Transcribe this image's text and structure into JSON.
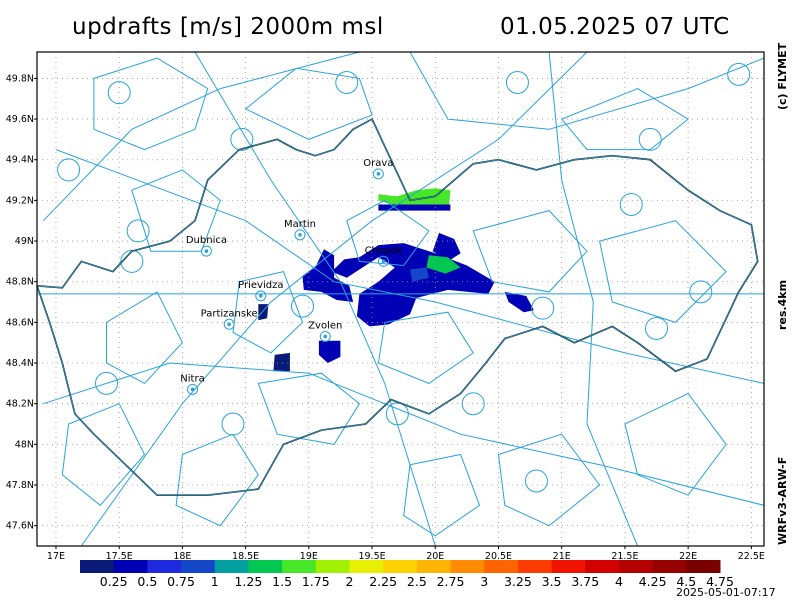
{
  "header": {
    "title": "updrafts [m/s] 2000m msl",
    "datetime": "01.05.2025 07 UTC"
  },
  "side_labels": {
    "copyright": "(c) FLYMET",
    "resolution": "res.4km",
    "model": "WRFv3-ARW-F"
  },
  "footer": {
    "timestamp": "2025-05-01-07:17"
  },
  "map_extent": {
    "lon_min": 16.85,
    "lon_max": 22.6,
    "lat_min": 47.5,
    "lat_max": 49.93
  },
  "axes": {
    "lat_ticks": [
      {
        "value": 49.8,
        "label": "49.8N"
      },
      {
        "value": 49.6,
        "label": "49.6N"
      },
      {
        "value": 49.4,
        "label": "49.4N"
      },
      {
        "value": 49.2,
        "label": "49.2N"
      },
      {
        "value": 49.0,
        "label": "49N"
      },
      {
        "value": 48.8,
        "label": "48.8N"
      },
      {
        "value": 48.6,
        "label": "48.6N"
      },
      {
        "value": 48.4,
        "label": "48.4N"
      },
      {
        "value": 48.2,
        "label": "48.2N"
      },
      {
        "value": 48.0,
        "label": "48N"
      },
      {
        "value": 47.8,
        "label": "47.8N"
      },
      {
        "value": 47.6,
        "label": "47.6N"
      }
    ],
    "lon_ticks": [
      {
        "value": 17.0,
        "label": "17E"
      },
      {
        "value": 17.5,
        "label": "17.5E"
      },
      {
        "value": 18.0,
        "label": "18E"
      },
      {
        "value": 18.5,
        "label": "18.5E"
      },
      {
        "value": 19.0,
        "label": "19E"
      },
      {
        "value": 19.5,
        "label": "19.5E"
      },
      {
        "value": 20.0,
        "label": "20E"
      },
      {
        "value": 20.5,
        "label": "20.5E"
      },
      {
        "value": 21.0,
        "label": "21E"
      },
      {
        "value": 21.5,
        "label": "21.5E"
      },
      {
        "value": 22.0,
        "label": "22E"
      },
      {
        "value": 22.5,
        "label": "22.5E"
      }
    ]
  },
  "cities": [
    {
      "name": "Orava",
      "lon": 19.55,
      "lat": 49.37
    },
    {
      "name": "Martin",
      "lon": 18.93,
      "lat": 49.07
    },
    {
      "name": "Dubnica",
      "lon": 18.19,
      "lat": 48.99
    },
    {
      "name": "Chopok",
      "lon": 19.59,
      "lat": 48.94
    },
    {
      "name": "Prievidza",
      "lon": 18.62,
      "lat": 48.77
    },
    {
      "name": "Partizanske",
      "lon": 18.37,
      "lat": 48.63
    },
    {
      "name": "Zvolen",
      "lon": 19.13,
      "lat": 48.57
    },
    {
      "name": "Nitra",
      "lon": 18.08,
      "lat": 48.31
    }
  ],
  "legend": {
    "unit": "m/s",
    "labels": [
      "0.25",
      "0.5",
      "0.75",
      "1",
      "1.25",
      "1.5",
      "1.75",
      "2",
      "2.25",
      "2.5",
      "2.75",
      "3",
      "3.25",
      "3.5",
      "3.75",
      "4",
      "4.25",
      "4.5",
      "4.75"
    ],
    "colors": [
      "#0a1a78",
      "#0000b4",
      "#1e28dc",
      "#1446c8",
      "#00a0a0",
      "#00c850",
      "#46e628",
      "#a0f000",
      "#e6f000",
      "#ffd200",
      "#ffb400",
      "#ff8c00",
      "#ff6400",
      "#ff3c00",
      "#f01400",
      "#d20000",
      "#b40000",
      "#960000",
      "#780000"
    ]
  },
  "updraft_regions": [
    {
      "value": 0.5,
      "points": [
        [
          18.95,
          48.83
        ],
        [
          19.05,
          48.87
        ],
        [
          19.12,
          48.96
        ],
        [
          19.2,
          48.93
        ],
        [
          19.2,
          48.82
        ],
        [
          19.32,
          48.78
        ],
        [
          19.35,
          48.7
        ],
        [
          19.22,
          48.71
        ],
        [
          19.1,
          48.75
        ],
        [
          18.96,
          48.76
        ]
      ]
    },
    {
      "value": 0.5,
      "points": [
        [
          19.18,
          48.85
        ],
        [
          19.28,
          48.91
        ],
        [
          19.4,
          48.92
        ],
        [
          19.55,
          48.98
        ],
        [
          19.75,
          48.99
        ],
        [
          20.0,
          48.94
        ],
        [
          20.25,
          48.88
        ],
        [
          20.47,
          48.8
        ],
        [
          20.42,
          48.74
        ],
        [
          20.1,
          48.76
        ],
        [
          19.85,
          48.72
        ],
        [
          19.8,
          48.64
        ],
        [
          19.63,
          48.59
        ],
        [
          19.48,
          48.58
        ],
        [
          19.38,
          48.63
        ],
        [
          19.4,
          48.74
        ],
        [
          19.55,
          48.8
        ],
        [
          19.68,
          48.87
        ],
        [
          19.55,
          48.92
        ],
        [
          19.4,
          48.86
        ],
        [
          19.3,
          48.82
        ]
      ]
    },
    {
      "value": 0.5,
      "points": [
        [
          20.03,
          49.04
        ],
        [
          20.15,
          49.01
        ],
        [
          20.2,
          48.94
        ],
        [
          20.1,
          48.9
        ],
        [
          19.98,
          48.95
        ]
      ]
    },
    {
      "value": 0.5,
      "points": [
        [
          20.55,
          48.75
        ],
        [
          20.72,
          48.73
        ],
        [
          20.78,
          48.66
        ],
        [
          20.7,
          48.65
        ],
        [
          20.58,
          48.7
        ]
      ]
    },
    {
      "value": 0.25,
      "points": [
        [
          18.6,
          48.69
        ],
        [
          18.68,
          48.69
        ],
        [
          18.67,
          48.62
        ],
        [
          18.6,
          48.61
        ]
      ]
    },
    {
      "value": 0.25,
      "points": [
        [
          18.73,
          48.44
        ],
        [
          18.85,
          48.45
        ],
        [
          18.85,
          48.36
        ],
        [
          18.72,
          48.36
        ]
      ]
    },
    {
      "value": 0.5,
      "points": [
        [
          19.08,
          48.51
        ],
        [
          19.25,
          48.51
        ],
        [
          19.25,
          48.43
        ],
        [
          19.15,
          48.4
        ],
        [
          19.08,
          48.44
        ]
      ]
    },
    {
      "value": 1.75,
      "points": [
        [
          19.55,
          49.23
        ],
        [
          19.7,
          49.22
        ],
        [
          19.85,
          49.25
        ],
        [
          20.0,
          49.26
        ],
        [
          20.12,
          49.25
        ],
        [
          20.11,
          49.18
        ],
        [
          19.95,
          49.17
        ],
        [
          19.8,
          49.18
        ],
        [
          19.65,
          49.18
        ],
        [
          19.55,
          49.2
        ]
      ]
    },
    {
      "value": 0.5,
      "points": [
        [
          19.55,
          49.18
        ],
        [
          20.12,
          49.18
        ],
        [
          20.12,
          49.15
        ],
        [
          19.55,
          49.15
        ]
      ]
    },
    {
      "value": 1.5,
      "points": [
        [
          19.95,
          48.93
        ],
        [
          20.1,
          48.92
        ],
        [
          20.2,
          48.87
        ],
        [
          20.08,
          48.84
        ],
        [
          19.93,
          48.87
        ]
      ]
    },
    {
      "value": 1.0,
      "points": [
        [
          19.8,
          48.86
        ],
        [
          19.93,
          48.87
        ],
        [
          19.95,
          48.82
        ],
        [
          19.82,
          48.8
        ]
      ]
    }
  ],
  "overlay_lines": {
    "border": [
      [
        16.85,
        48.78
      ],
      [
        17.05,
        48.77
      ],
      [
        17.2,
        48.9
      ],
      [
        17.45,
        48.85
      ],
      [
        17.6,
        48.95
      ],
      [
        17.9,
        49.0
      ],
      [
        18.1,
        49.1
      ],
      [
        18.2,
        49.3
      ],
      [
        18.45,
        49.45
      ],
      [
        18.75,
        49.5
      ],
      [
        18.9,
        49.45
      ],
      [
        19.05,
        49.42
      ],
      [
        19.2,
        49.45
      ],
      [
        19.35,
        49.55
      ],
      [
        19.5,
        49.6
      ],
      [
        19.65,
        49.4
      ],
      [
        19.8,
        49.2
      ],
      [
        20.0,
        49.22
      ],
      [
        20.15,
        49.3
      ],
      [
        20.3,
        49.38
      ],
      [
        20.5,
        49.4
      ],
      [
        20.8,
        49.35
      ],
      [
        21.1,
        49.4
      ],
      [
        21.4,
        49.42
      ],
      [
        21.7,
        49.4
      ],
      [
        22.0,
        49.25
      ],
      [
        22.25,
        49.15
      ],
      [
        22.5,
        49.08
      ],
      [
        22.55,
        48.9
      ],
      [
        22.4,
        48.75
      ],
      [
        22.15,
        48.42
      ],
      [
        21.9,
        48.36
      ],
      [
        21.6,
        48.5
      ],
      [
        21.4,
        48.58
      ],
      [
        21.1,
        48.5
      ],
      [
        20.85,
        48.58
      ],
      [
        20.55,
        48.52
      ],
      [
        20.4,
        48.4
      ],
      [
        20.2,
        48.25
      ],
      [
        19.95,
        48.15
      ],
      [
        19.65,
        48.22
      ],
      [
        19.45,
        48.1
      ],
      [
        19.1,
        48.07
      ],
      [
        18.8,
        48.0
      ],
      [
        18.6,
        47.78
      ],
      [
        18.2,
        47.75
      ],
      [
        17.8,
        47.75
      ],
      [
        17.55,
        47.9
      ],
      [
        17.3,
        48.05
      ],
      [
        17.15,
        48.15
      ],
      [
        17.05,
        48.4
      ],
      [
        16.95,
        48.6
      ],
      [
        16.85,
        48.78
      ]
    ],
    "airspace": [
      [
        [
          17.3,
          49.8
        ],
        [
          17.8,
          49.9
        ],
        [
          18.2,
          49.75
        ],
        [
          18.1,
          49.55
        ],
        [
          17.7,
          49.45
        ],
        [
          17.3,
          49.55
        ],
        [
          17.3,
          49.8
        ]
      ],
      [
        [
          18.5,
          49.65
        ],
        [
          18.9,
          49.85
        ],
        [
          19.4,
          49.8
        ],
        [
          19.5,
          49.62
        ],
        [
          19.0,
          49.5
        ],
        [
          18.5,
          49.65
        ]
      ],
      [
        [
          17.6,
          49.25
        ],
        [
          18.0,
          49.35
        ],
        [
          18.3,
          49.2
        ],
        [
          18.15,
          48.95
        ],
        [
          17.75,
          48.95
        ],
        [
          17.6,
          49.25
        ]
      ],
      [
        [
          19.3,
          49.1
        ],
        [
          19.6,
          49.2
        ],
        [
          19.95,
          49.05
        ],
        [
          19.75,
          48.88
        ],
        [
          19.4,
          48.9
        ],
        [
          19.3,
          49.1
        ]
      ],
      [
        [
          20.3,
          49.05
        ],
        [
          20.9,
          49.15
        ],
        [
          21.2,
          48.95
        ],
        [
          20.9,
          48.75
        ],
        [
          20.45,
          48.8
        ],
        [
          20.3,
          49.05
        ]
      ],
      [
        [
          21.3,
          49.0
        ],
        [
          21.9,
          49.1
        ],
        [
          22.3,
          48.85
        ],
        [
          21.9,
          48.6
        ],
        [
          21.4,
          48.7
        ],
        [
          21.3,
          49.0
        ]
      ],
      [
        [
          18.45,
          48.8
        ],
        [
          18.8,
          48.85
        ],
        [
          18.95,
          48.6
        ],
        [
          18.7,
          48.45
        ],
        [
          18.4,
          48.55
        ],
        [
          18.45,
          48.8
        ]
      ],
      [
        [
          17.4,
          48.6
        ],
        [
          17.8,
          48.75
        ],
        [
          18.0,
          48.5
        ],
        [
          17.7,
          48.3
        ],
        [
          17.4,
          48.4
        ],
        [
          17.4,
          48.6
        ]
      ],
      [
        [
          18.6,
          48.3
        ],
        [
          19.1,
          48.35
        ],
        [
          19.4,
          48.2
        ],
        [
          19.2,
          48.0
        ],
        [
          18.75,
          48.05
        ],
        [
          18.6,
          48.3
        ]
      ],
      [
        [
          19.6,
          48.6
        ],
        [
          20.1,
          48.65
        ],
        [
          20.3,
          48.45
        ],
        [
          19.95,
          48.3
        ],
        [
          19.55,
          48.4
        ],
        [
          19.6,
          48.6
        ]
      ],
      [
        [
          17.1,
          48.1
        ],
        [
          17.5,
          48.2
        ],
        [
          17.7,
          47.95
        ],
        [
          17.35,
          47.7
        ],
        [
          17.05,
          47.85
        ],
        [
          17.1,
          48.1
        ]
      ],
      [
        [
          20.5,
          47.95
        ],
        [
          21.0,
          48.05
        ],
        [
          21.3,
          47.8
        ],
        [
          20.9,
          47.6
        ],
        [
          20.55,
          47.7
        ],
        [
          20.5,
          47.95
        ]
      ],
      [
        [
          21.5,
          48.1
        ],
        [
          22.0,
          48.25
        ],
        [
          22.3,
          48.0
        ],
        [
          22.0,
          47.75
        ],
        [
          21.6,
          47.85
        ],
        [
          21.5,
          48.1
        ]
      ],
      [
        [
          18.0,
          47.95
        ],
        [
          18.4,
          48.05
        ],
        [
          18.6,
          47.85
        ],
        [
          18.3,
          47.6
        ],
        [
          17.95,
          47.7
        ],
        [
          18.0,
          47.95
        ]
      ],
      [
        [
          19.8,
          47.9
        ],
        [
          20.2,
          47.95
        ],
        [
          20.35,
          47.7
        ],
        [
          20.0,
          47.55
        ],
        [
          19.75,
          47.65
        ],
        [
          19.8,
          47.9
        ]
      ],
      [
        [
          21.0,
          49.6
        ],
        [
          21.6,
          49.75
        ],
        [
          22.0,
          49.6
        ],
        [
          21.7,
          49.45
        ],
        [
          21.2,
          49.45
        ],
        [
          21.0,
          49.6
        ]
      ]
    ],
    "routes": [
      [
        [
          16.85,
          48.74
        ],
        [
          22.6,
          48.74
        ]
      ],
      [
        [
          17.0,
          49.45
        ],
        [
          18.5,
          49.1
        ],
        [
          19.2,
          48.8
        ],
        [
          20.0,
          48.7
        ],
        [
          21.5,
          48.45
        ],
        [
          22.6,
          48.3
        ]
      ],
      [
        [
          17.2,
          47.5
        ],
        [
          18.0,
          48.2
        ],
        [
          18.7,
          48.7
        ],
        [
          19.5,
          49.1
        ],
        [
          20.5,
          49.5
        ],
        [
          21.2,
          49.93
        ]
      ],
      [
        [
          16.9,
          48.2
        ],
        [
          17.9,
          48.4
        ],
        [
          19.0,
          48.35
        ],
        [
          20.2,
          48.05
        ],
        [
          21.3,
          47.9
        ],
        [
          22.6,
          47.7
        ]
      ],
      [
        [
          18.1,
          49.93
        ],
        [
          18.7,
          49.3
        ],
        [
          19.25,
          48.8
        ],
        [
          19.6,
          48.3
        ],
        [
          20.0,
          47.5
        ]
      ],
      [
        [
          20.9,
          49.93
        ],
        [
          21.0,
          49.3
        ],
        [
          21.25,
          48.7
        ],
        [
          21.2,
          48.1
        ],
        [
          21.6,
          47.5
        ]
      ],
      [
        [
          16.9,
          49.1
        ],
        [
          17.6,
          49.55
        ],
        [
          18.3,
          49.75
        ],
        [
          19.4,
          49.93
        ]
      ],
      [
        [
          19.8,
          49.93
        ],
        [
          20.1,
          49.6
        ],
        [
          20.9,
          49.55
        ],
        [
          22.0,
          49.75
        ],
        [
          22.6,
          49.9
        ]
      ]
    ],
    "circles": [
      [
        17.5,
        49.73
      ],
      [
        18.47,
        49.5
      ],
      [
        20.65,
        49.78
      ],
      [
        21.7,
        49.5
      ],
      [
        19.3,
        49.78
      ],
      [
        22.4,
        49.82
      ],
      [
        17.1,
        49.35
      ],
      [
        17.6,
        48.9
      ],
      [
        18.95,
        48.68
      ],
      [
        20.85,
        48.67
      ],
      [
        21.75,
        48.57
      ],
      [
        17.4,
        48.3
      ],
      [
        19.7,
        48.15
      ],
      [
        20.3,
        48.2
      ],
      [
        18.4,
        48.1
      ],
      [
        22.1,
        48.75
      ],
      [
        17.65,
        49.05
      ],
      [
        21.55,
        49.18
      ],
      [
        20.8,
        47.82
      ]
    ]
  }
}
